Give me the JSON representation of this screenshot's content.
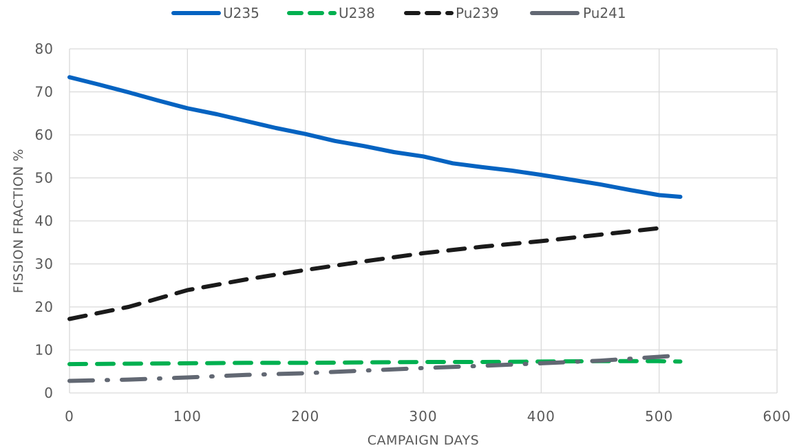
{
  "chart_data": {
    "type": "line",
    "title": "",
    "xlabel": "CAMPAIGN DAYS",
    "ylabel": "FISSION FRACTION %",
    "xlim": [
      0,
      600
    ],
    "ylim": [
      0,
      80
    ],
    "xticks": [
      0,
      100,
      200,
      300,
      400,
      500,
      600
    ],
    "yticks": [
      0,
      10,
      20,
      30,
      40,
      50,
      60,
      70,
      80
    ],
    "xtick_labels": [
      "0",
      "100",
      "200",
      "300",
      "400",
      "500",
      "600"
    ],
    "ytick_labels": [
      "0",
      "10",
      "20",
      "30",
      "40",
      "50",
      "60",
      "70",
      "80"
    ],
    "grid": true,
    "legend_position": "top-center",
    "series": [
      {
        "name": "U235",
        "color": "#0563c1",
        "style": "solid",
        "points": [
          [
            0,
            73.4
          ],
          [
            25,
            71.7
          ],
          [
            50,
            69.9
          ],
          [
            75,
            68.0
          ],
          [
            100,
            66.2
          ],
          [
            125,
            64.8
          ],
          [
            150,
            63.2
          ],
          [
            175,
            61.6
          ],
          [
            200,
            60.2
          ],
          [
            225,
            58.6
          ],
          [
            250,
            57.4
          ],
          [
            275,
            56.0
          ],
          [
            300,
            55.0
          ],
          [
            325,
            53.4
          ],
          [
            350,
            52.5
          ],
          [
            375,
            51.7
          ],
          [
            400,
            50.7
          ],
          [
            425,
            49.6
          ],
          [
            450,
            48.5
          ],
          [
            475,
            47.2
          ],
          [
            500,
            46.0
          ],
          [
            518,
            45.6
          ]
        ]
      },
      {
        "name": "U238",
        "color": "#00b050",
        "style": "dashed",
        "points": [
          [
            0,
            6.7
          ],
          [
            50,
            6.8
          ],
          [
            100,
            6.9
          ],
          [
            150,
            7.0
          ],
          [
            200,
            7.0
          ],
          [
            250,
            7.1
          ],
          [
            300,
            7.2
          ],
          [
            350,
            7.2
          ],
          [
            400,
            7.3
          ],
          [
            450,
            7.4
          ],
          [
            500,
            7.4
          ],
          [
            518,
            7.3
          ]
        ]
      },
      {
        "name": "Pu239",
        "color": "#1a1a1a",
        "style": "dashed",
        "points": [
          [
            0,
            17.2
          ],
          [
            50,
            20.0
          ],
          [
            100,
            23.9
          ],
          [
            150,
            26.4
          ],
          [
            200,
            28.6
          ],
          [
            250,
            30.6
          ],
          [
            300,
            32.5
          ],
          [
            350,
            34.0
          ],
          [
            400,
            35.3
          ],
          [
            450,
            36.8
          ],
          [
            500,
            38.3
          ]
        ]
      },
      {
        "name": "Pu241",
        "color": "#626873",
        "style": "dash-dot",
        "points": [
          [
            0,
            2.8
          ],
          [
            50,
            3.1
          ],
          [
            100,
            3.6
          ],
          [
            150,
            4.2
          ],
          [
            200,
            4.6
          ],
          [
            250,
            5.2
          ],
          [
            300,
            5.8
          ],
          [
            350,
            6.3
          ],
          [
            400,
            6.9
          ],
          [
            450,
            7.5
          ],
          [
            500,
            8.4
          ],
          [
            515,
            8.7
          ]
        ]
      }
    ]
  }
}
